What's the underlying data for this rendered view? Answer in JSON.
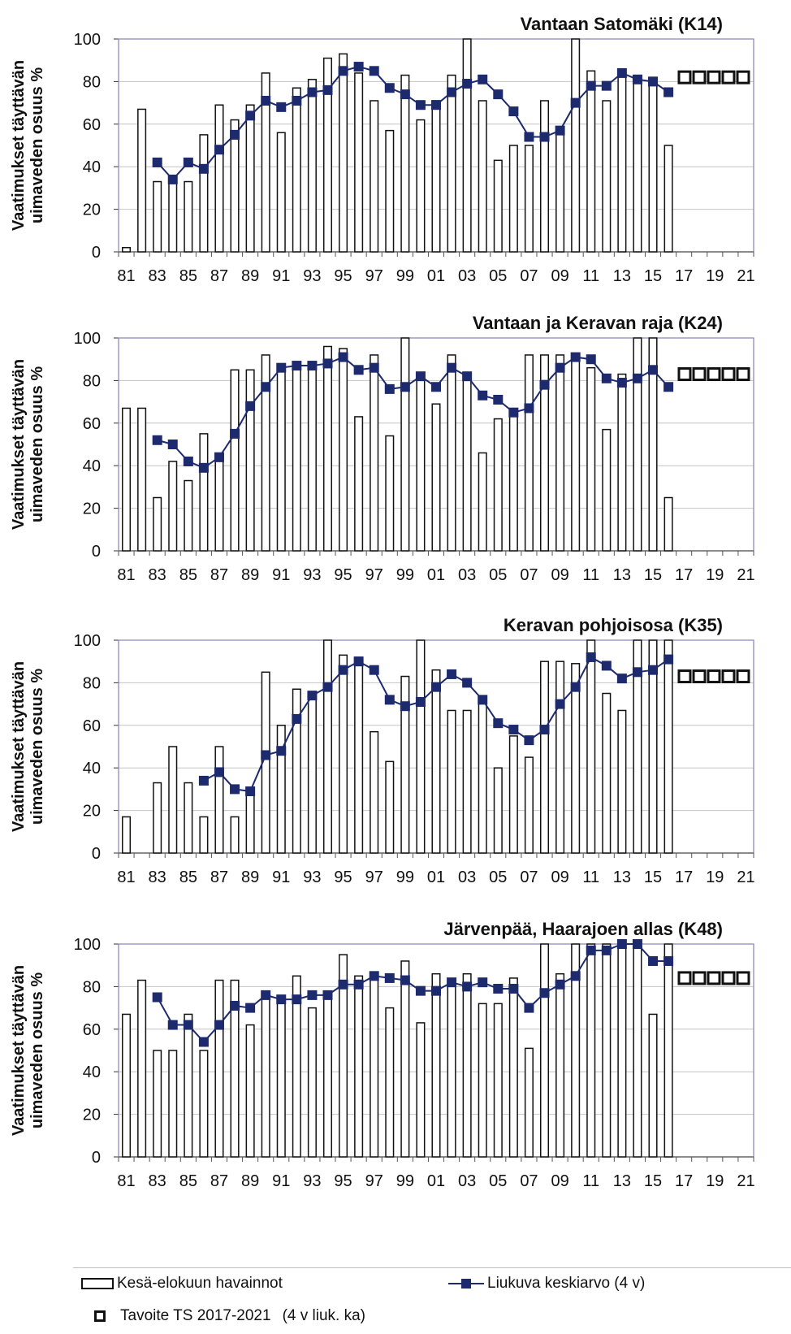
{
  "chart_data": [
    {
      "type": "bar",
      "title": "Vantaan Satomäki (K14)",
      "ylabel": "Vaatimukset täyttävän uimaveden osuus %",
      "ylim": [
        0,
        100
      ],
      "yticks": [
        "0",
        "20",
        "40",
        "60",
        "80",
        "100"
      ],
      "x_tick_labels": [
        "81",
        "83",
        "85",
        "87",
        "89",
        "91",
        "93",
        "95",
        "97",
        "99",
        "01",
        "03",
        "05",
        "07",
        "09",
        "11",
        "13",
        "15",
        "17",
        "19",
        "21"
      ],
      "categories": [
        "1981",
        "1982",
        "1983",
        "1984",
        "1985",
        "1986",
        "1987",
        "1988",
        "1989",
        "1990",
        "1991",
        "1992",
        "1993",
        "1994",
        "1995",
        "1996",
        "1997",
        "1998",
        "1999",
        "2000",
        "2001",
        "2002",
        "2003",
        "2004",
        "2005",
        "2006",
        "2007",
        "2008",
        "2009",
        "2010",
        "2011",
        "2012",
        "2013",
        "2014",
        "2015",
        "2016",
        "2017",
        "2018",
        "2019",
        "2020",
        "2021"
      ],
      "series": [
        {
          "name": "Kesä-elokuun havainnot",
          "type": "bar",
          "values": [
            2,
            67,
            33,
            33,
            33,
            55,
            69,
            62,
            69,
            84,
            56,
            77,
            81,
            91,
            93,
            84,
            71,
            57,
            83,
            62,
            71,
            83,
            100,
            71,
            43,
            50,
            50,
            71,
            57,
            100,
            85,
            71,
            83,
            82,
            82,
            50,
            null,
            null,
            null,
            null,
            null
          ]
        },
        {
          "name": "Liukuva keskiarvo (4 v)",
          "type": "line",
          "values": [
            null,
            null,
            42,
            34,
            42,
            39,
            48,
            55,
            64,
            71,
            68,
            71,
            75,
            76,
            85,
            87,
            85,
            77,
            74,
            69,
            69,
            75,
            79,
            81,
            74,
            66,
            54,
            54,
            57,
            70,
            78,
            78,
            84,
            81,
            80,
            75,
            null,
            null,
            null,
            null,
            null
          ]
        },
        {
          "name": "Tavoite TS 2017-2021",
          "type": "scatter",
          "values": [
            null,
            null,
            null,
            null,
            null,
            null,
            null,
            null,
            null,
            null,
            null,
            null,
            null,
            null,
            null,
            null,
            null,
            null,
            null,
            null,
            null,
            null,
            null,
            null,
            null,
            null,
            null,
            null,
            null,
            null,
            null,
            null,
            null,
            null,
            null,
            null,
            82,
            82,
            82,
            82,
            82
          ]
        }
      ]
    },
    {
      "type": "bar",
      "title": "Vantaan ja Keravan raja (K24)",
      "ylabel": "Vaatimukset täyttävän uimaveden osuus %",
      "ylim": [
        0,
        100
      ],
      "yticks": [
        "0",
        "20",
        "40",
        "60",
        "80",
        "100"
      ],
      "x_tick_labels": [
        "81",
        "83",
        "85",
        "87",
        "89",
        "91",
        "93",
        "95",
        "97",
        "99",
        "01",
        "03",
        "05",
        "07",
        "09",
        "11",
        "13",
        "15",
        "17",
        "19",
        "21"
      ],
      "categories": [
        "1981",
        "1982",
        "1983",
        "1984",
        "1985",
        "1986",
        "1987",
        "1988",
        "1989",
        "1990",
        "1991",
        "1992",
        "1993",
        "1994",
        "1995",
        "1996",
        "1997",
        "1998",
        "1999",
        "2000",
        "2001",
        "2002",
        "2003",
        "2004",
        "2005",
        "2006",
        "2007",
        "2008",
        "2009",
        "2010",
        "2011",
        "2012",
        "2013",
        "2014",
        "2015",
        "2016",
        "2017",
        "2018",
        "2019",
        "2020",
        "2021"
      ],
      "series": [
        {
          "name": "Kesä-elokuun havainnot",
          "type": "bar",
          "values": [
            67,
            67,
            25,
            42,
            33,
            55,
            42,
            85,
            85,
            92,
            86,
            88,
            88,
            96,
            95,
            63,
            92,
            54,
            100,
            83,
            69,
            92,
            83,
            46,
            62,
            66,
            92,
            92,
            92,
            92,
            86,
            57,
            83,
            100,
            100,
            25,
            null,
            null,
            null,
            null,
            null
          ]
        },
        {
          "name": "Liukuva keskiarvo (4 v)",
          "type": "line",
          "values": [
            null,
            null,
            52,
            50,
            42,
            39,
            44,
            55,
            68,
            77,
            86,
            87,
            87,
            88,
            91,
            85,
            86,
            76,
            77,
            82,
            77,
            86,
            82,
            73,
            71,
            65,
            67,
            78,
            86,
            91,
            90,
            81,
            79,
            81,
            85,
            77,
            null,
            null,
            null,
            null,
            null
          ]
        },
        {
          "name": "Tavoite TS 2017-2021",
          "type": "scatter",
          "values": [
            null,
            null,
            null,
            null,
            null,
            null,
            null,
            null,
            null,
            null,
            null,
            null,
            null,
            null,
            null,
            null,
            null,
            null,
            null,
            null,
            null,
            null,
            null,
            null,
            null,
            null,
            null,
            null,
            null,
            null,
            null,
            null,
            null,
            null,
            null,
            null,
            83,
            83,
            83,
            83,
            83
          ]
        }
      ]
    },
    {
      "type": "bar",
      "title": "Keravan pohjoisosa (K35)",
      "ylabel": "Vaatimukset täyttävän uimaveden osuus %",
      "ylim": [
        0,
        100
      ],
      "yticks": [
        "0",
        "20",
        "40",
        "60",
        "80",
        "100"
      ],
      "x_tick_labels": [
        "81",
        "83",
        "85",
        "87",
        "89",
        "91",
        "93",
        "95",
        "97",
        "99",
        "01",
        "03",
        "05",
        "07",
        "09",
        "11",
        "13",
        "15",
        "17",
        "19",
        "21"
      ],
      "categories": [
        "1981",
        "1982",
        "1983",
        "1984",
        "1985",
        "1986",
        "1987",
        "1988",
        "1989",
        "1990",
        "1991",
        "1992",
        "1993",
        "1994",
        "1995",
        "1996",
        "1997",
        "1998",
        "1999",
        "2000",
        "2001",
        "2002",
        "2003",
        "2004",
        "2005",
        "2006",
        "2007",
        "2008",
        "2009",
        "2010",
        "2011",
        "2012",
        "2013",
        "2014",
        "2015",
        "2016",
        "2017",
        "2018",
        "2019",
        "2020",
        "2021"
      ],
      "series": [
        {
          "name": "Kesä-elokuun havainnot",
          "type": "bar",
          "values": [
            17,
            0,
            33,
            50,
            33,
            17,
            50,
            17,
            29,
            85,
            60,
            77,
            75,
            100,
            93,
            92,
            57,
            43,
            83,
            100,
            86,
            67,
            67,
            73,
            40,
            55,
            45,
            90,
            90,
            89,
            100,
            75,
            67,
            100,
            100,
            100,
            null,
            null,
            null,
            null,
            null
          ]
        },
        {
          "name": "Liukuva keskiarvo (4 v)",
          "type": "line",
          "values": [
            null,
            null,
            null,
            null,
            null,
            34,
            38,
            30,
            29,
            46,
            48,
            63,
            74,
            78,
            86,
            90,
            86,
            72,
            69,
            71,
            78,
            84,
            80,
            72,
            61,
            58,
            53,
            58,
            70,
            78,
            92,
            88,
            82,
            85,
            86,
            91,
            null,
            null,
            null,
            null,
            null
          ]
        },
        {
          "name": "Tavoite TS 2017-2021",
          "type": "scatter",
          "values": [
            null,
            null,
            null,
            null,
            null,
            null,
            null,
            null,
            null,
            null,
            null,
            null,
            null,
            null,
            null,
            null,
            null,
            null,
            null,
            null,
            null,
            null,
            null,
            null,
            null,
            null,
            null,
            null,
            null,
            null,
            null,
            null,
            null,
            null,
            null,
            null,
            83,
            83,
            83,
            83,
            83
          ]
        }
      ]
    },
    {
      "type": "bar",
      "title": "Järvenpää, Haarajoen allas (K48)",
      "ylabel": "Vaatimukset täyttävän uimaveden osuus %",
      "ylim": [
        0,
        100
      ],
      "yticks": [
        "0",
        "20",
        "40",
        "60",
        "80",
        "100"
      ],
      "x_tick_labels": [
        "81",
        "83",
        "85",
        "87",
        "89",
        "91",
        "93",
        "95",
        "97",
        "99",
        "01",
        "03",
        "05",
        "07",
        "09",
        "11",
        "13",
        "15",
        "17",
        "19",
        "21"
      ],
      "categories": [
        "1981",
        "1982",
        "1983",
        "1984",
        "1985",
        "1986",
        "1987",
        "1988",
        "1989",
        "1990",
        "1991",
        "1992",
        "1993",
        "1994",
        "1995",
        "1996",
        "1997",
        "1998",
        "1999",
        "2000",
        "2001",
        "2002",
        "2003",
        "2004",
        "2005",
        "2006",
        "2007",
        "2008",
        "2009",
        "2010",
        "2011",
        "2012",
        "2013",
        "2014",
        "2015",
        "2016",
        "2017",
        "2018",
        "2019",
        "2020",
        "2021"
      ],
      "series": [
        {
          "name": "Kesä-elokuun havainnot",
          "type": "bar",
          "values": [
            67,
            83,
            50,
            50,
            67,
            50,
            83,
            83,
            62,
            77,
            75,
            85,
            70,
            77,
            95,
            85,
            85,
            70,
            92,
            63,
            86,
            82,
            86,
            72,
            72,
            84,
            51,
            100,
            86,
            100,
            100,
            100,
            100,
            100,
            67,
            100,
            null,
            null,
            null,
            null,
            null
          ]
        },
        {
          "name": "Liukuva keskiarvo (4 v)",
          "type": "line",
          "values": [
            null,
            null,
            75,
            62,
            62,
            54,
            62,
            71,
            70,
            76,
            74,
            74,
            76,
            76,
            81,
            81,
            85,
            84,
            83,
            78,
            78,
            82,
            80,
            82,
            79,
            79,
            70,
            77,
            81,
            85,
            97,
            97,
            100,
            100,
            92,
            92,
            null,
            null,
            null,
            null,
            null
          ]
        },
        {
          "name": "Tavoite TS 2017-2021",
          "type": "scatter",
          "values": [
            null,
            null,
            null,
            null,
            null,
            null,
            null,
            null,
            null,
            null,
            null,
            null,
            null,
            null,
            null,
            null,
            null,
            null,
            null,
            null,
            null,
            null,
            null,
            null,
            null,
            null,
            null,
            null,
            null,
            null,
            null,
            null,
            null,
            null,
            null,
            null,
            84,
            84,
            84,
            84,
            84
          ]
        }
      ]
    }
  ],
  "legend": {
    "bars_label": "Kesä-elokuun havainnot",
    "line_label": "Liukuva keskiarvo (4 v)",
    "target_label": "Tavoite TS 2017-2021",
    "target_note": "(4 v liuk. ka)"
  },
  "colors": {
    "line": "#1d2a6e",
    "bar_stroke": "#111111",
    "grid": "#c4c4c4",
    "plot_border": "#8a7fb8"
  }
}
